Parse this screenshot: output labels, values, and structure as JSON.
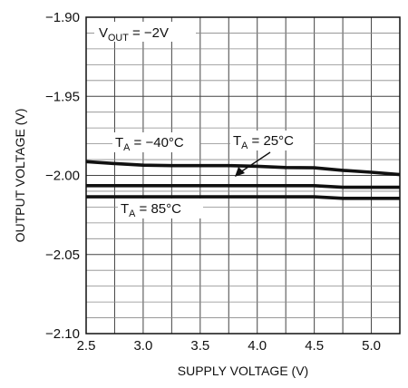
{
  "chart_data": {
    "type": "line",
    "title": "",
    "xlabel": "SUPPLY VOLTAGE (V)",
    "ylabel": "OUTPUT VOLTAGE (V)",
    "xlim": [
      2.5,
      5.25
    ],
    "ylim": [
      -2.1,
      -1.9
    ],
    "xticks": [
      2.5,
      3.0,
      3.5,
      4.0,
      4.5,
      5.0
    ],
    "xtick_labels": [
      "2.5",
      "3.0",
      "3.5",
      "4.0",
      "4.5",
      "5.0"
    ],
    "yticks": [
      -1.9,
      -1.95,
      -2.0,
      -2.05,
      -2.1
    ],
    "ytick_labels": [
      "−1.90",
      "−1.95",
      "−2.00",
      "−2.05",
      "−2.10"
    ],
    "grid": true,
    "grid_x_step": 0.25,
    "grid_y_step": 0.01,
    "annotation_vout": {
      "main": "V",
      "sub": "OUT",
      "rest": " = −2V"
    },
    "series": [
      {
        "name": "T_A = −40°C",
        "label": {
          "main": "T",
          "sub": "A",
          "rest": " = −40°C"
        },
        "x": [
          2.5,
          2.75,
          3.0,
          3.25,
          3.5,
          3.75,
          4.0,
          4.25,
          4.5,
          4.75,
          5.0,
          5.25
        ],
        "y": [
          -1.9913,
          -1.9925,
          -1.9935,
          -1.9938,
          -1.9938,
          -1.9938,
          -1.9942,
          -1.995,
          -1.9952,
          -1.9968,
          -1.998,
          -1.9995
        ]
      },
      {
        "name": "T_A = 25°C",
        "label": {
          "main": "T",
          "sub": "A",
          "rest": " = 25°C"
        },
        "x": [
          2.5,
          2.75,
          3.0,
          3.25,
          3.5,
          3.75,
          4.0,
          4.25,
          4.5,
          4.75,
          5.0,
          5.25
        ],
        "y": [
          -2.0065,
          -2.0065,
          -2.0065,
          -2.0065,
          -2.0065,
          -2.0065,
          -2.0065,
          -2.0065,
          -2.0065,
          -2.0075,
          -2.0075,
          -2.0075
        ]
      },
      {
        "name": "T_A = 85°C",
        "label": {
          "main": "T",
          "sub": "A",
          "rest": " = 85°C"
        },
        "x": [
          2.5,
          2.75,
          3.0,
          3.25,
          3.5,
          3.75,
          4.0,
          4.25,
          4.5,
          4.75,
          5.0,
          5.25
        ],
        "y": [
          -2.0135,
          -2.0135,
          -2.0135,
          -2.0135,
          -2.0135,
          -2.0135,
          -2.0135,
          -2.0135,
          -2.0135,
          -2.0145,
          -2.0145,
          -2.0145
        ]
      }
    ]
  }
}
